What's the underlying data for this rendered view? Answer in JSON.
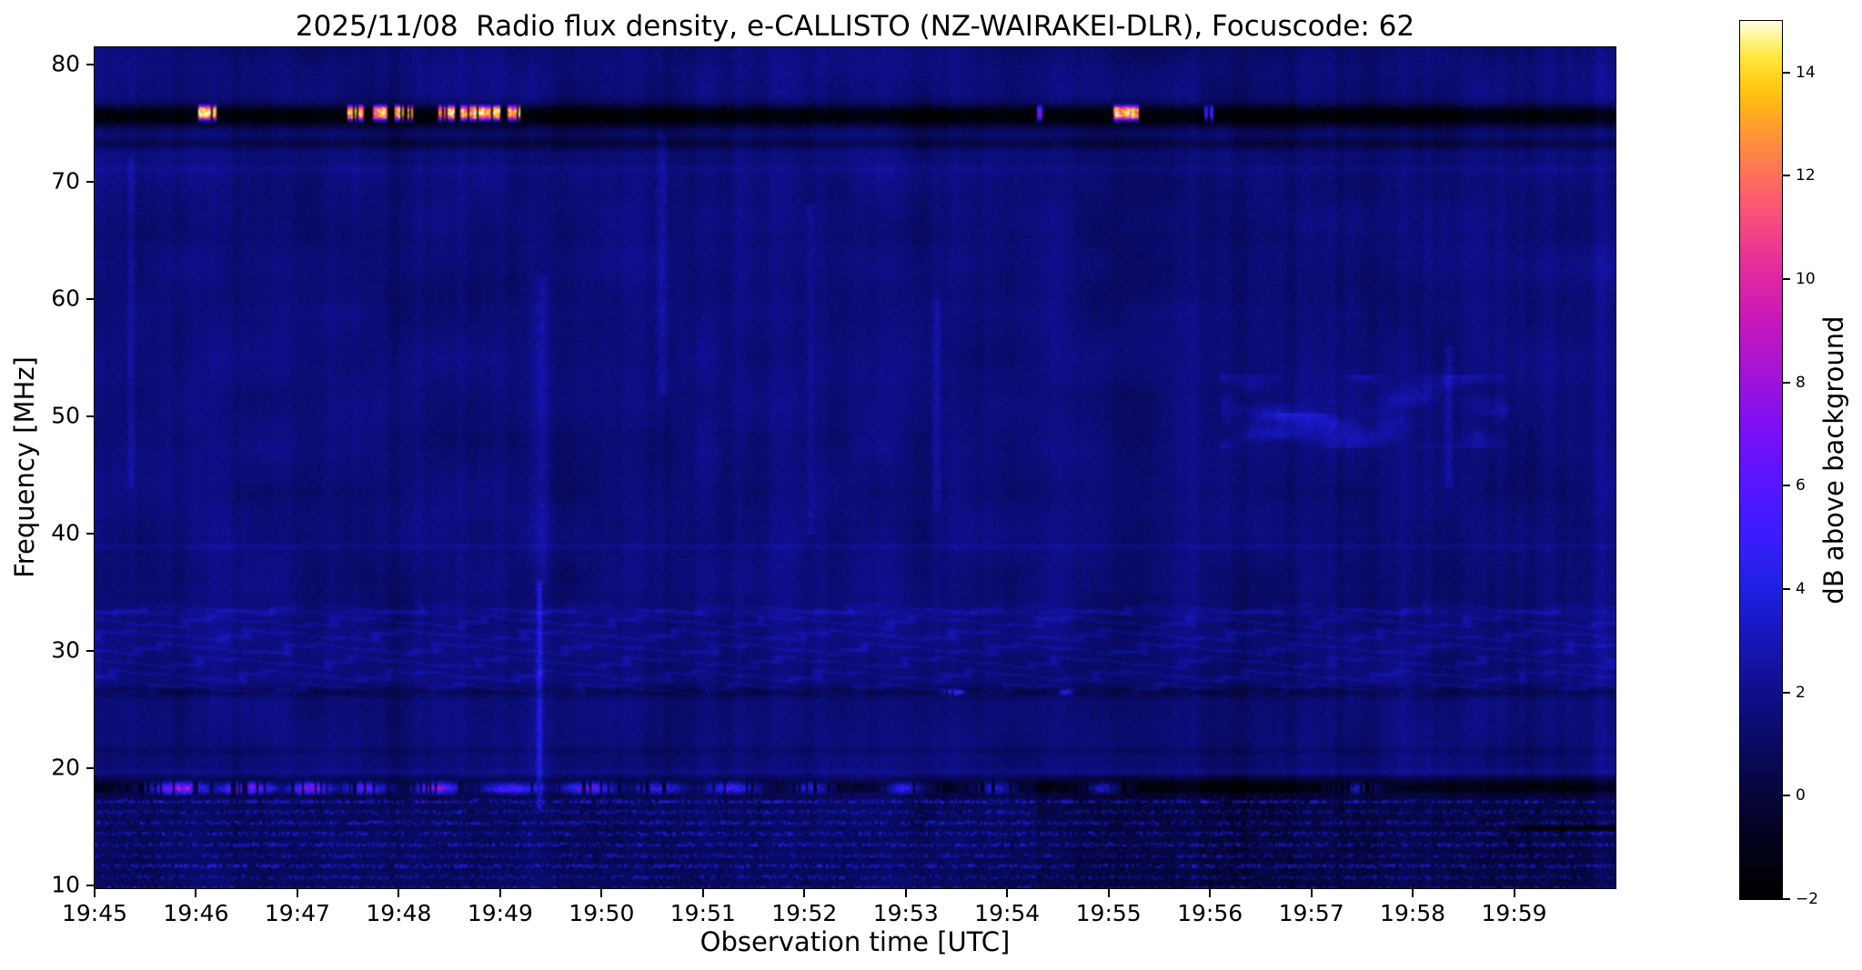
{
  "chart_data": {
    "type": "heatmap",
    "title": "2025/11/08  Radio flux density, e-CALLISTO (NZ-WAIRAKEI-DLR), Focuscode: 62",
    "xlabel": "Observation time [UTC]",
    "ylabel": "Frequency [MHz]",
    "x_ticks": [
      "19:45",
      "19:46",
      "19:47",
      "19:48",
      "19:49",
      "19:50",
      "19:51",
      "19:52",
      "19:53",
      "19:54",
      "19:55",
      "19:56",
      "19:57",
      "19:58",
      "19:59"
    ],
    "x_range_minutes": [
      0,
      15
    ],
    "y_ticks": [
      80,
      70,
      60,
      50,
      40,
      30,
      20,
      10
    ],
    "y_range_mhz": [
      9.8,
      81.5
    ],
    "grid": false,
    "background_level_db": 1.5,
    "colorbar": {
      "label": "dB above background",
      "tick_values": [
        14,
        12,
        10,
        8,
        6,
        4,
        2,
        0,
        -2
      ],
      "tick_labels": [
        "14",
        "12",
        "10",
        "8",
        "6",
        "4",
        "2",
        "0",
        "−2"
      ],
      "range": [
        -2,
        15
      ],
      "colormap": "gnuplot2-like",
      "colormap_stops": [
        [
          0.0,
          "#000000"
        ],
        [
          0.06,
          "#02021a"
        ],
        [
          0.12,
          "#06063c"
        ],
        [
          0.18,
          "#0a0a66"
        ],
        [
          0.24,
          "#101090"
        ],
        [
          0.3,
          "#1717be"
        ],
        [
          0.36,
          "#2121e8"
        ],
        [
          0.42,
          "#3e1cff"
        ],
        [
          0.48,
          "#5c14ff"
        ],
        [
          0.54,
          "#7e10f2"
        ],
        [
          0.6,
          "#a513d6"
        ],
        [
          0.66,
          "#c818ba"
        ],
        [
          0.72,
          "#e72c9c"
        ],
        [
          0.78,
          "#f9517c"
        ],
        [
          0.83,
          "#ff7556"
        ],
        [
          0.88,
          "#ff9e2c"
        ],
        [
          0.92,
          "#ffc50e"
        ],
        [
          0.96,
          "#ffe83e"
        ],
        [
          0.985,
          "#fff8a8"
        ],
        [
          1.0,
          "#fffdea"
        ]
      ]
    },
    "features": [
      {
        "type": "band",
        "f_center": 75.7,
        "f_width": 2.0,
        "delta_db": -3.4
      },
      {
        "type": "band",
        "f_center": 73.4,
        "f_width": 1.1,
        "delta_db": -1.2
      },
      {
        "type": "band",
        "f_center": 71.2,
        "f_width": 0.7,
        "delta_db": 0.35
      },
      {
        "type": "band",
        "f_center": 39.0,
        "f_width": 0.5,
        "delta_db": 0.65
      },
      {
        "type": "band",
        "f_center": 33.4,
        "f_width": 0.6,
        "delta_db": 0.5
      },
      {
        "type": "band",
        "f_center": 26.6,
        "f_width": 1.0,
        "delta_db": -1.0
      },
      {
        "type": "band",
        "f_center": 21.6,
        "f_width": 0.7,
        "delta_db": -0.5
      },
      {
        "type": "band",
        "f_center": 18.5,
        "f_width": 1.4,
        "delta_db": -2.4
      },
      {
        "type": "band",
        "f_center": 19.8,
        "f_width": 0.5,
        "delta_db": 0.5
      },
      {
        "type": "bursts",
        "f_center": 76.0,
        "f_width": 1.25,
        "events": [
          {
            "t0": 1.02,
            "t1": 1.2,
            "db": 14.5
          },
          {
            "t0": 2.5,
            "t1": 2.68,
            "db": 14.2
          },
          {
            "t0": 2.74,
            "t1": 2.9,
            "db": 13.8
          },
          {
            "t0": 2.96,
            "t1": 3.14,
            "db": 14.4
          },
          {
            "t0": 3.4,
            "t1": 3.56,
            "db": 14.0
          },
          {
            "t0": 3.6,
            "t1": 4.04,
            "db": 14.5
          },
          {
            "t0": 4.08,
            "t1": 4.2,
            "db": 13.6
          },
          {
            "t0": 9.3,
            "t1": 9.37,
            "db": 6.5
          },
          {
            "t0": 10.05,
            "t1": 10.3,
            "db": 14.5
          },
          {
            "t0": 10.95,
            "t1": 11.03,
            "db": 5.5
          }
        ]
      },
      {
        "type": "blobs",
        "f_center": 18.4,
        "f_width": 1.0,
        "events": [
          {
            "t0": 0.55,
            "t1": 1.15,
            "db": 9.5
          },
          {
            "t0": 1.2,
            "t1": 1.8,
            "db": 8.5
          },
          {
            "t0": 1.9,
            "t1": 2.35,
            "db": 9.0
          },
          {
            "t0": 2.4,
            "t1": 2.9,
            "db": 7.0
          },
          {
            "t0": 3.15,
            "t1": 3.6,
            "db": 8.5
          },
          {
            "t0": 3.8,
            "t1": 4.45,
            "db": 6.5
          },
          {
            "t0": 4.6,
            "t1": 5.15,
            "db": 7.5
          },
          {
            "t0": 5.3,
            "t1": 5.85,
            "db": 5.5
          },
          {
            "t0": 6.0,
            "t1": 6.55,
            "db": 6.0
          },
          {
            "t0": 6.9,
            "t1": 7.25,
            "db": 5.0
          },
          {
            "t0": 7.8,
            "t1": 8.15,
            "db": 5.5
          },
          {
            "t0": 8.7,
            "t1": 9.05,
            "db": 4.5
          },
          {
            "t0": 9.8,
            "t1": 10.1,
            "db": 4.2
          },
          {
            "t0": 12.3,
            "t1": 12.65,
            "db": 4.0
          }
        ]
      },
      {
        "type": "blobs",
        "f_center": 26.6,
        "f_width": 0.55,
        "events": [
          {
            "t0": 8.35,
            "t1": 8.6,
            "db": 6.2
          },
          {
            "t0": 9.5,
            "t1": 9.65,
            "db": 5.2
          }
        ]
      },
      {
        "type": "speckle",
        "f_lo": 9.8,
        "f_hi": 17.7,
        "db": 4.4,
        "row_spacing_mhz": 0.925
      },
      {
        "type": "wavy",
        "f_lo": 25.6,
        "f_hi": 34.6,
        "db": 1.0,
        "line_spacing_mhz": 1.15,
        "wobble_period_min": 1.4
      },
      {
        "type": "vstreak",
        "t": 4.38,
        "t_width": 0.03,
        "f_lo": 16.5,
        "f_hi": 36.0,
        "db": 2.4
      },
      {
        "type": "vstreak",
        "t": 4.4,
        "t_width": 0.06,
        "f_lo": 36.0,
        "f_hi": 62.0,
        "db": 0.9
      },
      {
        "type": "vstreak",
        "t": 0.35,
        "t_width": 0.03,
        "f_lo": 44.0,
        "f_hi": 72.0,
        "db": 0.8
      },
      {
        "type": "vstreak",
        "t": 5.6,
        "t_width": 0.05,
        "f_lo": 52.0,
        "f_hi": 74.0,
        "db": 0.9
      },
      {
        "type": "vstreak",
        "t": 7.05,
        "t_width": 0.04,
        "f_lo": 40.0,
        "f_hi": 68.0,
        "db": 0.9
      },
      {
        "type": "vstreak",
        "t": 8.3,
        "t_width": 0.04,
        "f_lo": 42.0,
        "f_hi": 60.0,
        "db": 0.8
      },
      {
        "type": "vstreak",
        "t": 13.35,
        "t_width": 0.04,
        "f_lo": 44.0,
        "f_hi": 56.0,
        "db": 1.1
      },
      {
        "type": "patch",
        "t0": 11.1,
        "t1": 13.95,
        "f_lo": 47.5,
        "f_hi": 53.5,
        "db": 1.4
      },
      {
        "type": "patch",
        "t0": 11.35,
        "t1": 12.45,
        "f_lo": 48.2,
        "f_hi": 50.3,
        "db": 2.0
      },
      {
        "type": "hsegment",
        "f_center": 15.0,
        "f_width": 0.35,
        "t0": 14.05,
        "t1": 15.0,
        "delta_db": -3.5
      },
      {
        "type": "dim",
        "t0": 9.3,
        "t1": 15.0,
        "f_lo": 9.8,
        "f_hi": 19.4,
        "delta_db": -0.55
      }
    ]
  }
}
